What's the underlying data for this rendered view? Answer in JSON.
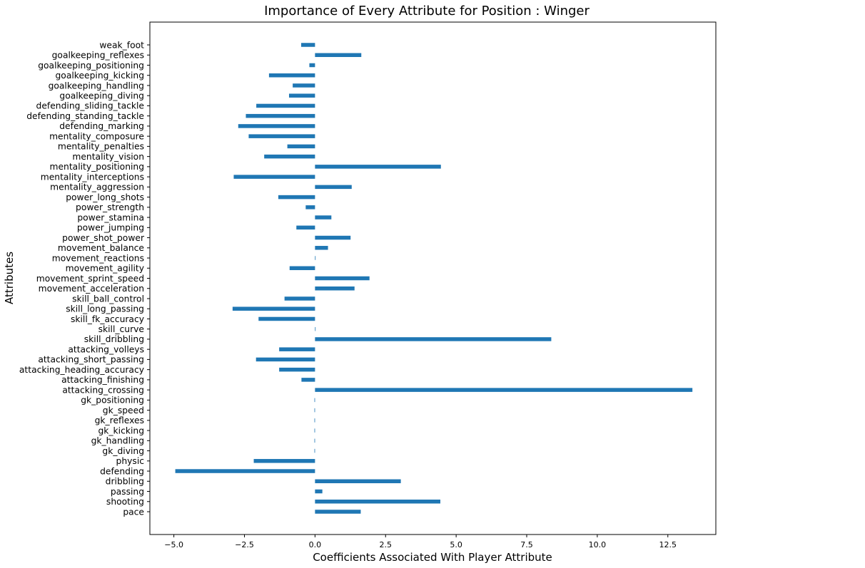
{
  "chart_data": {
    "type": "bar",
    "orientation": "horizontal",
    "title": "Importance of Every Attribute for Position : Winger",
    "xlabel": "Coefficients Associated With Player Attribute",
    "ylabel": "Attributes",
    "xlim": [
      -5.85,
      14.2
    ],
    "xticks": [
      -5.0,
      -2.5,
      0.0,
      2.5,
      5.0,
      7.5,
      10.0,
      12.5
    ],
    "xtick_labels": [
      "−5.0",
      "−2.5",
      "0.0",
      "2.5",
      "5.0",
      "7.5",
      "10.0",
      "12.5"
    ],
    "grid": false,
    "bar_color": "#1f77b4",
    "categories": [
      "pace",
      "shooting",
      "passing",
      "dribbling",
      "defending",
      "physic",
      "gk_diving",
      "gk_handling",
      "gk_kicking",
      "gk_reflexes",
      "gk_speed",
      "gk_positioning",
      "attacking_crossing",
      "attacking_finishing",
      "attacking_heading_accuracy",
      "attacking_short_passing",
      "attacking_volleys",
      "skill_dribbling",
      "skill_curve",
      "skill_fk_accuracy",
      "skill_long_passing",
      "skill_ball_control",
      "movement_acceleration",
      "movement_sprint_speed",
      "movement_agility",
      "movement_reactions",
      "movement_balance",
      "power_shot_power",
      "power_jumping",
      "power_stamina",
      "power_strength",
      "power_long_shots",
      "mentality_aggression",
      "mentality_interceptions",
      "mentality_positioning",
      "mentality_vision",
      "mentality_penalties",
      "mentality_composure",
      "defending_marking",
      "defending_standing_tackle",
      "defending_sliding_tackle",
      "goalkeeping_diving",
      "goalkeeping_handling",
      "goalkeeping_kicking",
      "goalkeeping_positioning",
      "goalkeeping_reflexes",
      "weak_foot"
    ],
    "values": [
      1.62,
      4.44,
      0.26,
      3.04,
      -4.95,
      -2.17,
      -0.02,
      -0.02,
      -0.02,
      -0.02,
      -0.02,
      -0.02,
      13.37,
      -0.48,
      -1.27,
      -2.09,
      -1.27,
      8.37,
      0.0,
      -2.0,
      -2.92,
      -1.08,
      1.4,
      1.93,
      -0.9,
      0.0,
      0.46,
      1.26,
      -0.66,
      0.58,
      -0.33,
      -1.3,
      1.3,
      -2.88,
      4.46,
      -1.8,
      -0.98,
      -2.35,
      -2.72,
      -2.45,
      -2.08,
      -0.92,
      -0.79,
      -1.63,
      -0.2,
      1.64,
      -0.49
    ]
  }
}
